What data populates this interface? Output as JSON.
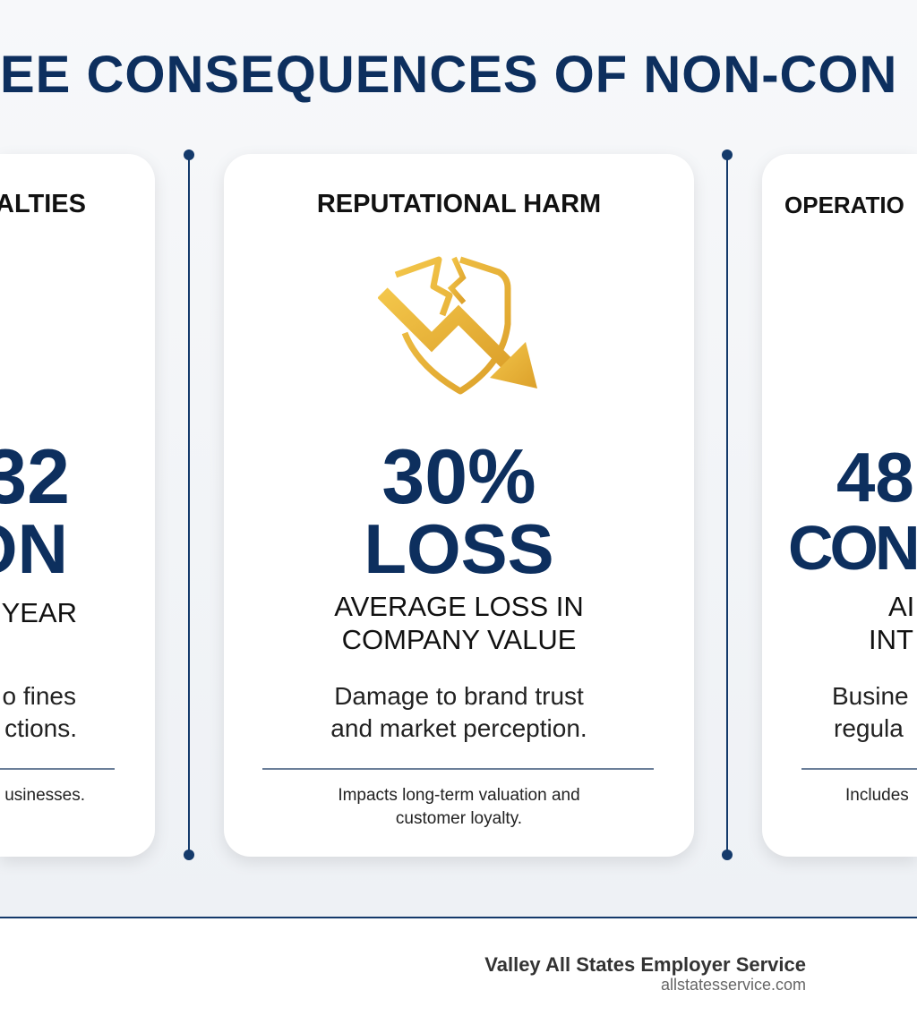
{
  "title": "EE CONSEQUENCES OF NON-CON",
  "colors": {
    "navy": "#0d2f5e",
    "gold": "#e8b130"
  },
  "cards": [
    {
      "heading": "ALTIES",
      "stat_line1": "32",
      "stat_line2": "ON",
      "sub_line1": "YEAR",
      "desc_line1": "o fines",
      "desc_line2": "ctions.",
      "note_line1": "usinesses."
    },
    {
      "heading": "REPUTATIONAL HARM",
      "icon": "broken-shield-down-arrow-icon",
      "stat_line1": "30%",
      "stat_line2": "LOSS",
      "sub_line1": "AVERAGE LOSS IN",
      "sub_line2": "COMPANY VALUE",
      "desc_line1": "Damage to brand trust",
      "desc_line2": "and market perception.",
      "note_line1": "Impacts long-term valuation and",
      "note_line2": "customer loyalty."
    },
    {
      "heading": "OPERATIO",
      "stat_line1": "48",
      "stat_line2": "CON",
      "sub_line1": "AI",
      "sub_line2": "INT",
      "desc_line1": "Busine",
      "desc_line2": "regula",
      "note_line1": "Includes"
    }
  ],
  "footer": {
    "brand": "Valley All States Employer Service",
    "url": "allstatesservice.com"
  }
}
